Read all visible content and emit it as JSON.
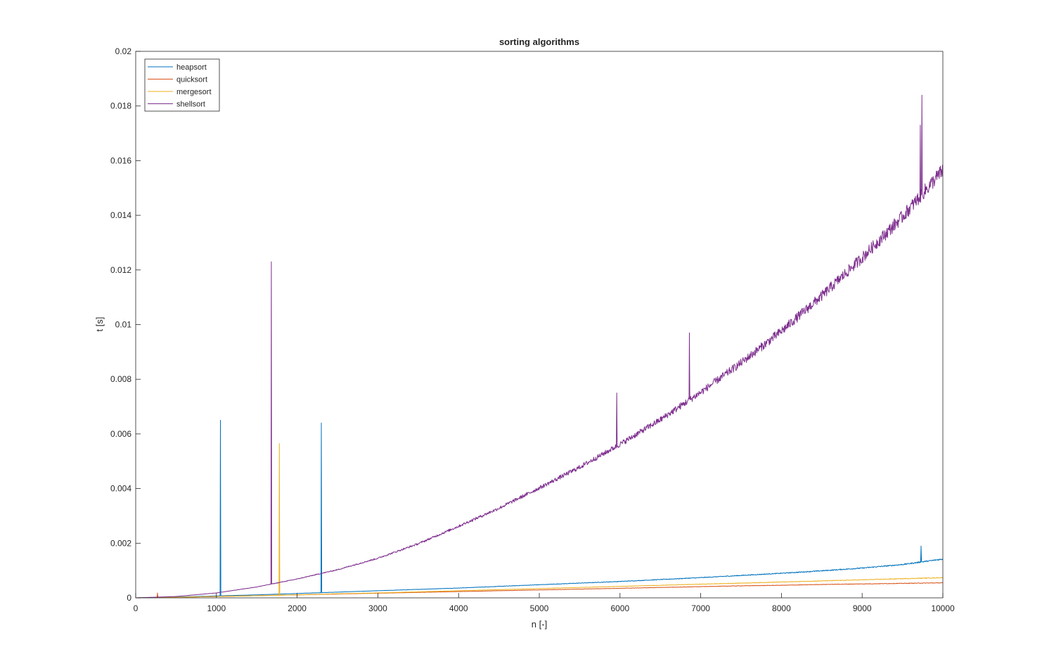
{
  "chart_data": {
    "type": "line",
    "title": "sorting algorithms",
    "xlabel": "n [-]",
    "ylabel": "t [s]",
    "xlim": [
      0,
      10000
    ],
    "ylim": [
      0,
      0.02
    ],
    "x_ticks": [
      0,
      1000,
      2000,
      3000,
      4000,
      5000,
      6000,
      7000,
      8000,
      9000,
      10000
    ],
    "x_tick_labels": [
      "0",
      "1000",
      "2000",
      "3000",
      "4000",
      "5000",
      "6000",
      "7000",
      "8000",
      "9000",
      "10000"
    ],
    "y_ticks": [
      0,
      0.002,
      0.004,
      0.006,
      0.008,
      0.01,
      0.012,
      0.014,
      0.016,
      0.018,
      0.02
    ],
    "y_tick_labels": [
      "0",
      "0.002",
      "0.004",
      "0.006",
      "0.008",
      "0.01",
      "0.012",
      "0.014",
      "0.016",
      "0.018",
      "0.02"
    ],
    "grid": false,
    "legend_position": "top-left",
    "x": [
      0,
      500,
      1000,
      1500,
      2000,
      2500,
      3000,
      3500,
      4000,
      4500,
      5000,
      5500,
      6000,
      6500,
      7000,
      7500,
      8000,
      8500,
      9000,
      9500,
      10000
    ],
    "series": [
      {
        "name": "heapsort",
        "color": "#0072BD",
        "values": [
          0,
          3e-05,
          7e-05,
          0.00011,
          0.00016,
          0.00021,
          0.00026,
          0.00031,
          0.00036,
          0.00042,
          0.00048,
          0.00054,
          0.0006,
          0.00067,
          0.00074,
          0.00082,
          0.0009,
          0.00099,
          0.00109,
          0.00122,
          0.00142
        ],
        "spikes": [
          [
            1050,
            0.0065
          ],
          [
            2300,
            0.0064
          ],
          [
            9730,
            0.0019
          ]
        ]
      },
      {
        "name": "quicksort",
        "color": "#D95319",
        "values": [
          0,
          2e-05,
          5e-05,
          8e-05,
          0.00011,
          0.00014,
          0.00017,
          0.0002,
          0.00023,
          0.00026,
          0.00029,
          0.00032,
          0.00035,
          0.00038,
          0.00041,
          0.00044,
          0.00046,
          0.00049,
          0.00051,
          0.00053,
          0.00055
        ],
        "spikes": [
          [
            270,
            0.00018
          ]
        ]
      },
      {
        "name": "mergesort",
        "color": "#EDB120",
        "values": [
          0,
          2e-05,
          5e-05,
          8e-05,
          0.00011,
          0.00015,
          0.00018,
          0.00022,
          0.00026,
          0.0003,
          0.00034,
          0.00038,
          0.00042,
          0.00046,
          0.0005,
          0.00054,
          0.00058,
          0.00062,
          0.00066,
          0.0007,
          0.00074
        ],
        "spikes": [
          [
            1780,
            0.00565
          ]
        ]
      },
      {
        "name": "shellsort",
        "color": "#7E2F8E",
        "values": [
          0,
          5e-05,
          0.00018,
          0.0004,
          0.00069,
          0.00103,
          0.00145,
          0.00198,
          0.00262,
          0.00328,
          0.00402,
          0.00478,
          0.00562,
          0.00652,
          0.00752,
          0.0086,
          0.00976,
          0.01105,
          0.01245,
          0.01395,
          0.01565
        ],
        "spikes": [
          [
            1680,
            0.0123
          ],
          [
            5960,
            0.0075
          ],
          [
            6860,
            0.0097
          ],
          [
            9720,
            0.0173
          ],
          [
            9740,
            0.0184
          ]
        ]
      }
    ]
  }
}
